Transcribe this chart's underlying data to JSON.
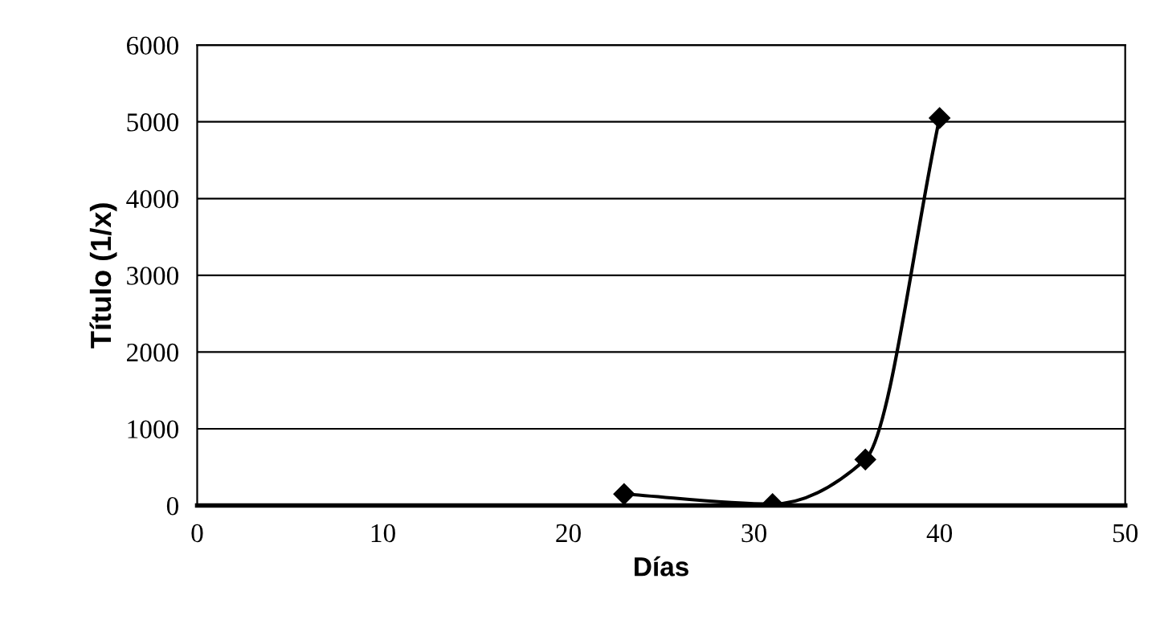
{
  "chart_data": {
    "type": "line",
    "xlabel": "Días",
    "ylabel": "Título (1/x)",
    "x": [
      23,
      31,
      36,
      40
    ],
    "series": [
      {
        "color": "#000000",
        "values": [
          150,
          20,
          600,
          5050
        ]
      }
    ],
    "xlim": [
      0,
      50
    ],
    "xticks": [
      0,
      10,
      20,
      30,
      40,
      50
    ],
    "ylim": [
      0,
      6000
    ],
    "yticks": [
      0,
      1000,
      2000,
      3000,
      4000,
      5000,
      6000
    ],
    "grid": "y",
    "marker": "diamond",
    "line_style": "solid"
  }
}
